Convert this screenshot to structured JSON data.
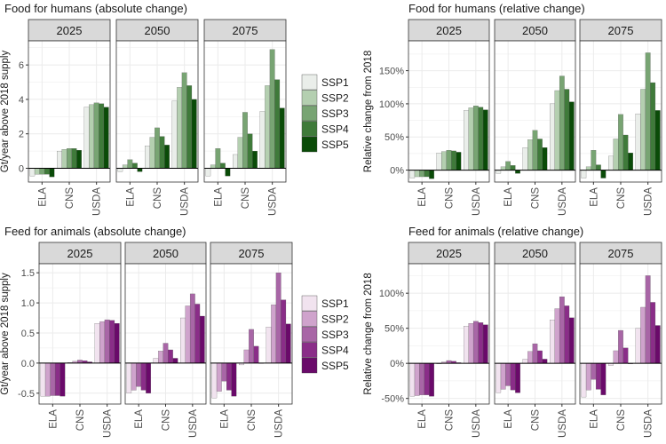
{
  "colors": {
    "green": [
      "#eaeeea",
      "#b4cfb0",
      "#78a473",
      "#3f7a3a",
      "#0a4b08"
    ],
    "purple": [
      "#f1e3ef",
      "#cfa3cc",
      "#a866a6",
      "#8a2d88",
      "#6a0a6a"
    ]
  },
  "chart_data": [
    {
      "type": "bar",
      "title": "Food for humans (absolute change)",
      "ylabel": "Gt/year above 2018 supply",
      "ylim": [
        -0.8,
        7.4
      ],
      "yticks": [
        0,
        2,
        4,
        6
      ],
      "ytick_labels": [
        "0",
        "2",
        "4",
        "6"
      ],
      "facets": [
        "2025",
        "2050",
        "2075"
      ],
      "categories": [
        "ELA",
        "CNS",
        "USDA"
      ],
      "palette": "green",
      "legend": [
        "SSP1",
        "SSP2",
        "SSP3",
        "SSP4",
        "SSP5"
      ],
      "values": [
        [
          [
            -0.45,
            -0.35,
            -0.35,
            -0.35,
            -0.5
          ],
          [
            1.0,
            1.1,
            1.15,
            1.15,
            1.05
          ],
          [
            3.55,
            3.7,
            3.8,
            3.75,
            3.55
          ]
        ],
        [
          [
            -0.2,
            0.2,
            0.5,
            0.3,
            -0.2
          ],
          [
            1.3,
            1.8,
            2.35,
            1.85,
            1.35
          ],
          [
            3.9,
            4.7,
            5.55,
            4.8,
            4.0
          ]
        ],
        [
          [
            -0.45,
            0.2,
            1.15,
            0.3,
            -0.45
          ],
          [
            0.8,
            1.8,
            3.25,
            2.0,
            1.0
          ],
          [
            3.3,
            4.8,
            6.9,
            5.15,
            3.5
          ]
        ]
      ]
    },
    {
      "type": "bar",
      "title": "Food for humans (relative change)",
      "ylabel": "Relative change from 2018",
      "ylim": [
        -0.18,
        1.95
      ],
      "yticks": [
        0,
        0.5,
        1.0,
        1.5
      ],
      "ytick_labels": [
        "0%",
        "50%",
        "100%",
        "150%"
      ],
      "facets": [
        "2025",
        "2050",
        "2075"
      ],
      "categories": [
        "ELA",
        "CNS",
        "USDA"
      ],
      "palette": "green",
      "legend": [],
      "values": [
        [
          [
            -0.12,
            -0.1,
            -0.1,
            -0.1,
            -0.13
          ],
          [
            0.26,
            0.28,
            0.3,
            0.29,
            0.27
          ],
          [
            0.9,
            0.94,
            0.97,
            0.95,
            0.91
          ]
        ],
        [
          [
            -0.05,
            0.05,
            0.13,
            0.07,
            -0.05
          ],
          [
            0.34,
            0.46,
            0.6,
            0.47,
            0.34
          ],
          [
            1.0,
            1.2,
            1.42,
            1.22,
            1.03
          ]
        ],
        [
          [
            -0.12,
            0.05,
            0.3,
            0.08,
            -0.12
          ],
          [
            0.21,
            0.47,
            0.84,
            0.53,
            0.26
          ],
          [
            0.85,
            1.22,
            1.77,
            1.32,
            0.9
          ]
        ]
      ]
    },
    {
      "type": "bar",
      "title": "Feed for animals (absolute change)",
      "ylabel": "Gt/year above 2018 supply",
      "ylim": [
        -0.68,
        1.65
      ],
      "yticks": [
        -0.5,
        0,
        0.5,
        1.0,
        1.5
      ],
      "ytick_labels": [
        "-0.5",
        "0.0",
        "0.5",
        "1.0",
        "1.5"
      ],
      "facets": [
        "2025",
        "2050",
        "2075"
      ],
      "categories": [
        "ELA",
        "CNS",
        "USDA"
      ],
      "palette": "purple",
      "legend": [
        "SSP1",
        "SSP2",
        "SSP3",
        "SSP4",
        "SSP5"
      ],
      "values": [
        [
          [
            -0.55,
            -0.55,
            -0.54,
            -0.54,
            -0.55
          ],
          [
            0.01,
            0.03,
            0.05,
            0.04,
            0.02
          ],
          [
            0.66,
            0.69,
            0.72,
            0.71,
            0.66
          ]
        ],
        [
          [
            -0.5,
            -0.45,
            -0.39,
            -0.45,
            -0.5
          ],
          [
            0.08,
            0.2,
            0.33,
            0.22,
            0.08
          ],
          [
            0.75,
            0.95,
            1.15,
            0.98,
            0.78
          ]
        ],
        [
          [
            -0.58,
            -0.47,
            -0.3,
            -0.45,
            -0.55
          ],
          [
            -0.03,
            0.22,
            0.56,
            0.28,
            0.0
          ],
          [
            0.6,
            0.97,
            1.5,
            1.05,
            0.65
          ]
        ]
      ]
    },
    {
      "type": "bar",
      "title": "Feed for animals (relative change)",
      "ylabel": "Relative change from 2018",
      "ylim": [
        -0.58,
        1.42
      ],
      "yticks": [
        -0.5,
        0,
        0.5,
        1.0
      ],
      "ytick_labels": [
        "-50%",
        "0%",
        "50%",
        "100%"
      ],
      "facets": [
        "2025",
        "2050",
        "2075"
      ],
      "categories": [
        "ELA",
        "CNS",
        "USDA"
      ],
      "palette": "purple",
      "legend": [],
      "values": [
        [
          [
            -0.47,
            -0.46,
            -0.45,
            -0.45,
            -0.47
          ],
          [
            0.0,
            0.02,
            0.04,
            0.03,
            0.01
          ],
          [
            0.53,
            0.57,
            0.6,
            0.58,
            0.55
          ]
        ],
        [
          [
            -0.42,
            -0.37,
            -0.32,
            -0.38,
            -0.42
          ],
          [
            0.06,
            0.17,
            0.28,
            0.18,
            0.06
          ],
          [
            0.62,
            0.78,
            0.95,
            0.82,
            0.65
          ]
        ],
        [
          [
            -0.48,
            -0.38,
            -0.23,
            -0.37,
            -0.45
          ],
          [
            -0.03,
            0.18,
            0.47,
            0.22,
            0.0
          ],
          [
            0.5,
            0.8,
            1.25,
            0.87,
            0.54
          ]
        ]
      ]
    }
  ]
}
